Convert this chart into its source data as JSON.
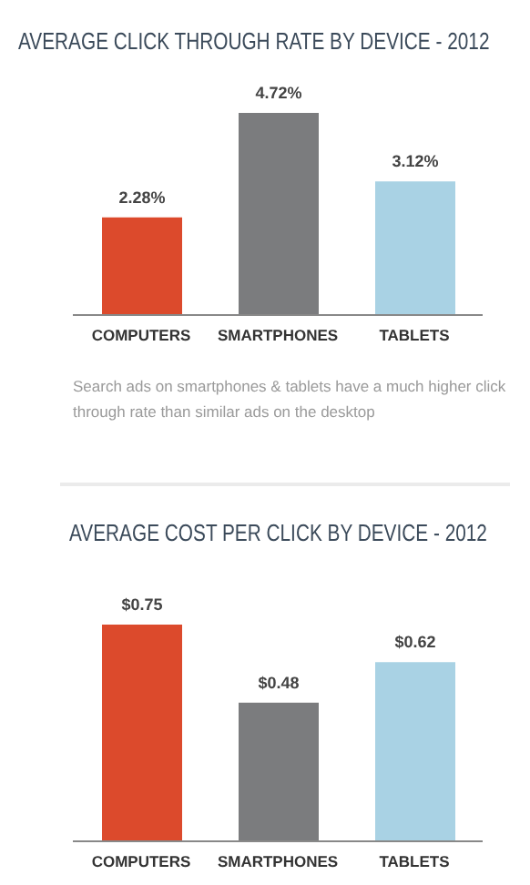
{
  "chart_data": [
    {
      "type": "bar",
      "title": "AVERAGE CLICK THROUGH RATE BY DEVICE - 2012",
      "categories": [
        "COMPUTERS",
        "SMARTPHONES",
        "TABLETS"
      ],
      "values": [
        2.28,
        4.72,
        3.12
      ],
      "value_labels": [
        "2.28%",
        "4.72%",
        "3.12%"
      ],
      "colors": [
        "#dc4a2c",
        "#7b7c7e",
        "#a9d2e4"
      ],
      "annotations": [
        "Search ads on smartphones & tablets have a much higher click through rate than similar ads on the desktop"
      ]
    },
    {
      "type": "bar",
      "title": "AVERAGE COST PER CLICK BY DEVICE - 2012",
      "categories": [
        "COMPUTERS",
        "SMARTPHONES",
        "TABLETS"
      ],
      "values": [
        0.75,
        0.48,
        0.62
      ],
      "value_labels": [
        "$0.75",
        "$0.48",
        "$0.62"
      ],
      "colors": [
        "#dc4a2c",
        "#7b7c7e",
        "#a9d2e4"
      ]
    }
  ]
}
